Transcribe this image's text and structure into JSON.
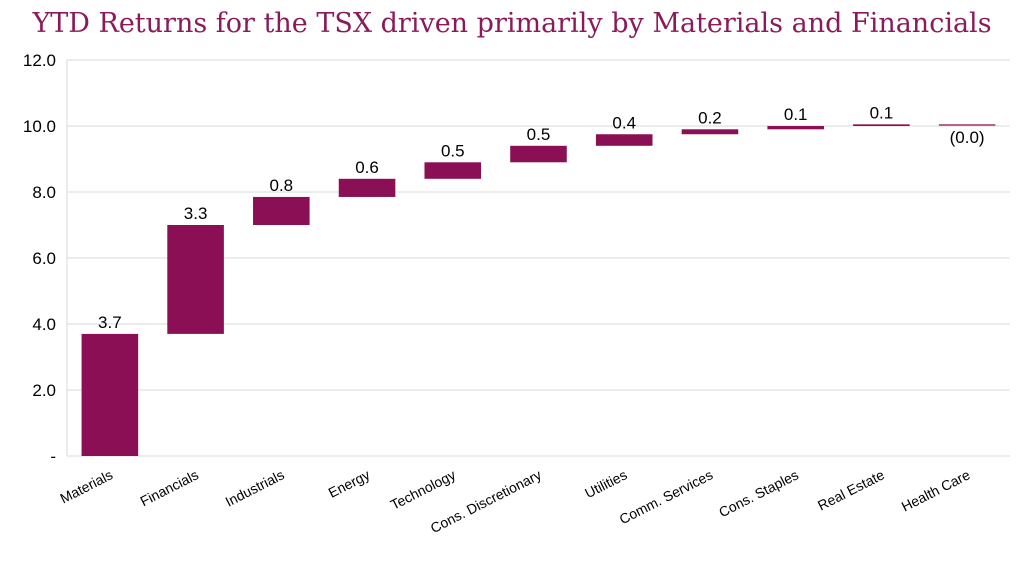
{
  "chart_data": {
    "type": "bar",
    "subtype": "waterfall",
    "title": "YTD Returns for the TSX driven primarily by Materials and Financials",
    "xlabel": "",
    "ylabel": "",
    "ylim": [
      0,
      12
    ],
    "yticks": [
      0,
      2,
      4,
      6,
      8,
      10,
      12
    ],
    "ytick_labels": [
      "-",
      "2.0",
      "4.0",
      "6.0",
      "8.0",
      "10.0",
      "12.0"
    ],
    "grid": true,
    "legend": "none",
    "bar_color": "#8b0f55",
    "categories": [
      "Materials",
      "Financials",
      "Industrials",
      "Energy",
      "Technology",
      "Cons. Discretionary",
      "Utilities",
      "Comm. Services",
      "Cons. Staples",
      "Real Estate",
      "Health Care"
    ],
    "values": [
      3.7,
      3.3,
      0.85,
      0.55,
      0.5,
      0.5,
      0.35,
      0.15,
      0.1,
      0.05,
      -0.02
    ],
    "data_labels": [
      "3.7",
      "3.3",
      "0.8",
      "0.6",
      "0.5",
      "0.5",
      "0.4",
      "0.2",
      "0.1",
      "0.1",
      "(0.0)"
    ]
  }
}
